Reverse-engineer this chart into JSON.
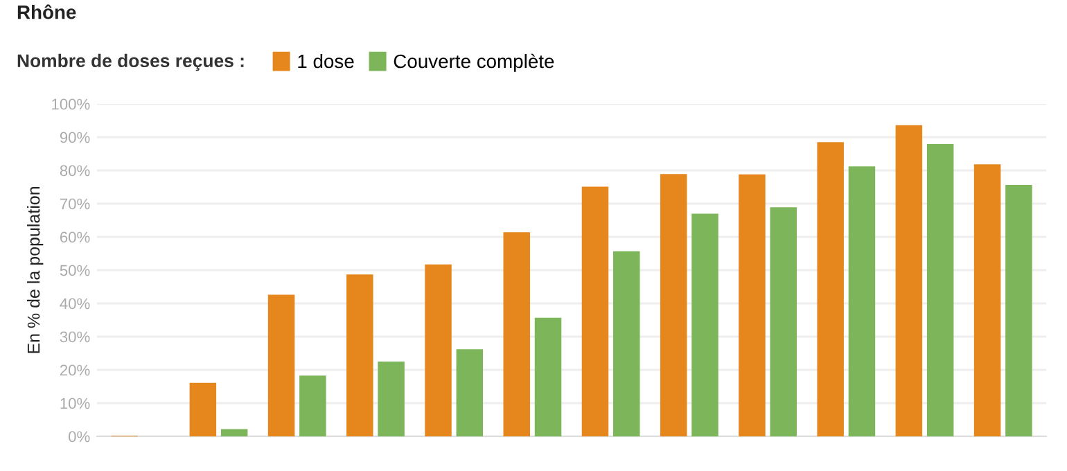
{
  "chart_data": {
    "type": "bar",
    "annotations": [
      "Rhône"
    ],
    "ylabel": "En % de la population",
    "legend_title": "Nombre de doses reçues :",
    "legend": "top left",
    "grid": "y",
    "categories": [
      null,
      null,
      null,
      null,
      null,
      null,
      null,
      null,
      null,
      null,
      null,
      null
    ],
    "series": [
      {
        "name": "1 dose",
        "color": "#e5871c",
        "values": [
          0.2,
          16.1,
          42.6,
          48.7,
          51.7,
          61.4,
          75.1,
          78.9,
          78.8,
          88.5,
          93.6,
          81.8
        ]
      },
      {
        "name": "Couverte complète",
        "color": "#7db55a",
        "values": [
          0,
          2.2,
          18.3,
          22.5,
          26.2,
          35.7,
          55.7,
          67.0,
          68.9,
          81.2,
          87.9,
          75.6
        ]
      }
    ],
    "ylim": [
      0,
      100
    ],
    "yticks": [
      {
        "value": 0,
        "label": "0%"
      },
      {
        "value": 10,
        "label": "10%"
      },
      {
        "value": 20,
        "label": "20%"
      },
      {
        "value": 30,
        "label": "30%"
      },
      {
        "value": 40,
        "label": "40%"
      },
      {
        "value": 50,
        "label": "50%"
      },
      {
        "value": 60,
        "label": "60%"
      },
      {
        "value": 70,
        "label": "70%"
      },
      {
        "value": 80,
        "label": "80%"
      },
      {
        "value": 90,
        "label": "90%"
      },
      {
        "value": 100,
        "label": "100%"
      }
    ]
  }
}
